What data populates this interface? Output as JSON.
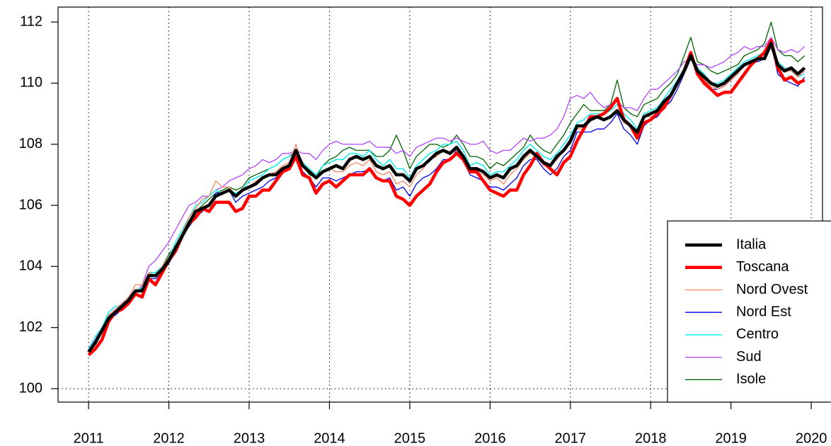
{
  "chart_data": {
    "type": "line",
    "xlim": [
      2010.62,
      2020.14
    ],
    "ylim": [
      99.56,
      112.49
    ],
    "xticks": [
      2011,
      2012,
      2013,
      2014,
      2015,
      2016,
      2017,
      2018,
      2019,
      2020
    ],
    "yticks": [
      100,
      102,
      104,
      106,
      108,
      110,
      112
    ],
    "grid": true,
    "reference_line": 100,
    "legend": "bottom-right",
    "x": [
      2011,
      2011.083,
      2011.167,
      2011.25,
      2011.333,
      2011.417,
      2011.5,
      2011.583,
      2011.667,
      2011.75,
      2011.833,
      2011.917,
      2012,
      2012.083,
      2012.167,
      2012.25,
      2012.333,
      2012.417,
      2012.5,
      2012.583,
      2012.667,
      2012.75,
      2012.833,
      2012.917,
      2013,
      2013.083,
      2013.167,
      2013.25,
      2013.333,
      2013.417,
      2013.5,
      2013.583,
      2013.667,
      2013.75,
      2013.833,
      2013.917,
      2014,
      2014.083,
      2014.167,
      2014.25,
      2014.333,
      2014.417,
      2014.5,
      2014.583,
      2014.667,
      2014.75,
      2014.833,
      2014.917,
      2015,
      2015.083,
      2015.167,
      2015.25,
      2015.333,
      2015.417,
      2015.5,
      2015.583,
      2015.667,
      2015.75,
      2015.833,
      2015.917,
      2016,
      2016.083,
      2016.167,
      2016.25,
      2016.333,
      2016.417,
      2016.5,
      2016.583,
      2016.667,
      2016.75,
      2016.833,
      2016.917,
      2017,
      2017.083,
      2017.167,
      2017.25,
      2017.333,
      2017.417,
      2017.5,
      2017.583,
      2017.667,
      2017.75,
      2017.833,
      2017.917,
      2018,
      2018.083,
      2018.167,
      2018.25,
      2018.333,
      2018.417,
      2018.5,
      2018.583,
      2018.667,
      2018.75,
      2018.833,
      2018.917,
      2019,
      2019.083,
      2019.167,
      2019.25,
      2019.333,
      2019.417,
      2019.5,
      2019.583,
      2019.667,
      2019.75,
      2019.833,
      2019.917
    ],
    "series": [
      {
        "name": "Italia",
        "color": "#000000",
        "label_color": "#000000",
        "line_width": 4.5,
        "values": [
          101.2,
          101.5,
          101.9,
          102.3,
          102.5,
          102.7,
          102.9,
          103.2,
          103.2,
          103.7,
          103.7,
          103.9,
          104.2,
          104.6,
          105.0,
          105.4,
          105.8,
          105.9,
          106.0,
          106.3,
          106.4,
          106.5,
          106.3,
          106.5,
          106.6,
          106.7,
          106.9,
          107.0,
          107.0,
          107.2,
          107.3,
          107.8,
          107.3,
          107.1,
          106.9,
          107.1,
          107.2,
          107.3,
          107.2,
          107.5,
          107.6,
          107.5,
          107.6,
          107.3,
          107.2,
          107.3,
          107.0,
          107.0,
          106.8,
          107.2,
          107.3,
          107.5,
          107.7,
          107.8,
          107.7,
          107.9,
          107.6,
          107.2,
          107.2,
          107.1,
          106.9,
          107.0,
          106.9,
          107.2,
          107.3,
          107.6,
          107.8,
          107.6,
          107.4,
          107.3,
          107.6,
          107.8,
          108.1,
          108.6,
          108.6,
          108.8,
          108.9,
          108.8,
          108.9,
          109.1,
          108.8,
          108.6,
          108.4,
          108.9,
          109.0,
          109.1,
          109.4,
          109.6,
          110.0,
          110.4,
          110.9,
          110.4,
          110.2,
          110.0,
          109.9,
          110.0,
          110.2,
          110.4,
          110.6,
          110.7,
          110.8,
          110.8,
          111.3,
          110.6,
          110.4,
          110.5,
          110.3,
          110.5
        ]
      },
      {
        "name": "Toscana",
        "color": "#ff0000",
        "label_color": "#ff0000",
        "line_width": 4.5,
        "values": [
          101.1,
          101.3,
          101.6,
          102.2,
          102.5,
          102.6,
          102.8,
          103.1,
          103.0,
          103.6,
          103.4,
          103.8,
          104.2,
          104.5,
          105.0,
          105.4,
          105.6,
          105.9,
          105.8,
          106.1,
          106.1,
          106.1,
          105.8,
          105.9,
          106.3,
          106.3,
          106.5,
          106.5,
          106.8,
          107.1,
          107.2,
          107.6,
          107.0,
          106.9,
          106.4,
          106.7,
          106.8,
          106.6,
          106.8,
          107.0,
          107.0,
          107.0,
          107.2,
          106.9,
          106.8,
          106.8,
          106.3,
          106.2,
          106.0,
          106.3,
          106.5,
          106.7,
          107.1,
          107.4,
          107.5,
          107.7,
          107.5,
          107.1,
          107.1,
          106.8,
          106.5,
          106.4,
          106.3,
          106.5,
          106.5,
          107.0,
          107.3,
          107.7,
          107.4,
          107.2,
          107.0,
          107.4,
          107.6,
          108.1,
          108.5,
          108.9,
          108.9,
          109.0,
          109.2,
          109.5,
          108.8,
          108.6,
          108.2,
          108.7,
          108.8,
          109.0,
          109.2,
          109.6,
          110.0,
          110.4,
          111.0,
          110.3,
          110.0,
          109.8,
          109.6,
          109.7,
          109.7,
          110.0,
          110.3,
          110.6,
          110.8,
          111.0,
          111.4,
          110.5,
          110.1,
          110.2,
          110.0,
          110.1
        ]
      },
      {
        "name": "Nord Ovest",
        "color": "#f4845f",
        "label_color": "#f4845f",
        "line_width": 1.3,
        "values": [
          101.2,
          101.5,
          101.9,
          102.4,
          102.6,
          102.8,
          103.0,
          103.4,
          103.4,
          103.8,
          103.7,
          104.0,
          104.3,
          104.7,
          105.1,
          105.6,
          105.9,
          106.2,
          106.3,
          106.8,
          106.6,
          106.6,
          106.3,
          106.5,
          106.6,
          106.8,
          106.9,
          107.0,
          107.1,
          107.3,
          107.4,
          108.0,
          107.3,
          107.1,
          106.9,
          107.1,
          107.2,
          107.1,
          107.1,
          107.3,
          107.4,
          107.3,
          107.5,
          107.1,
          107.0,
          107.1,
          106.7,
          106.8,
          106.6,
          107.0,
          107.2,
          107.5,
          107.6,
          107.8,
          107.7,
          107.8,
          107.6,
          107.1,
          107.1,
          107.0,
          106.8,
          106.9,
          106.7,
          107.0,
          107.2,
          107.5,
          107.7,
          107.6,
          107.3,
          107.3,
          107.5,
          107.8,
          108.2,
          108.5,
          108.5,
          108.9,
          108.9,
          108.8,
          108.9,
          109.1,
          108.7,
          108.6,
          108.3,
          108.9,
          108.9,
          109.0,
          109.3,
          109.6,
          110.0,
          110.5,
          110.9,
          110.4,
          110.1,
          109.9,
          109.8,
          109.9,
          110.1,
          110.3,
          110.6,
          110.7,
          110.8,
          110.8,
          111.2,
          110.6,
          110.4,
          110.4,
          110.2,
          110.4
        ]
      },
      {
        "name": "Nord Est",
        "color": "#0000ee",
        "label_color": "#0000ff",
        "line_width": 1.3,
        "values": [
          101.2,
          101.5,
          101.9,
          102.3,
          102.4,
          102.6,
          102.8,
          103.2,
          103.2,
          103.6,
          103.6,
          103.8,
          104.1,
          104.5,
          105.0,
          105.3,
          105.6,
          105.8,
          106.0,
          106.4,
          106.4,
          106.5,
          106.1,
          106.3,
          106.4,
          106.5,
          106.6,
          106.8,
          106.9,
          107.1,
          107.2,
          107.7,
          107.1,
          106.9,
          106.6,
          106.9,
          106.9,
          106.8,
          106.9,
          107.0,
          107.1,
          107.1,
          107.2,
          106.9,
          106.8,
          106.9,
          106.5,
          106.6,
          106.3,
          106.7,
          106.9,
          107.0,
          107.2,
          107.5,
          107.5,
          107.8,
          107.5,
          107.0,
          106.9,
          106.8,
          106.6,
          106.6,
          106.5,
          106.7,
          106.9,
          107.3,
          107.5,
          107.5,
          107.2,
          107.0,
          107.2,
          107.6,
          107.8,
          108.4,
          108.4,
          108.4,
          108.5,
          108.5,
          108.7,
          109.0,
          108.5,
          108.3,
          108.0,
          108.6,
          108.8,
          108.9,
          109.2,
          109.4,
          109.8,
          110.3,
          110.8,
          110.4,
          110.1,
          109.8,
          109.8,
          109.9,
          110.1,
          110.3,
          110.6,
          110.7,
          110.7,
          110.8,
          111.3,
          110.3,
          110.1,
          110.0,
          109.9,
          110.2
        ]
      },
      {
        "name": "Centro",
        "color": "#22eeee",
        "label_color": "#66f0d8",
        "line_width": 1.6,
        "values": [
          101.3,
          101.7,
          102.0,
          102.5,
          102.7,
          102.7,
          102.9,
          103.2,
          103.3,
          103.8,
          103.8,
          104.0,
          104.3,
          104.8,
          105.2,
          105.6,
          106.0,
          106.1,
          106.3,
          106.5,
          106.4,
          106.5,
          106.4,
          106.5,
          106.8,
          106.9,
          107.0,
          107.2,
          107.3,
          107.5,
          107.6,
          107.7,
          107.4,
          107.2,
          107.0,
          107.3,
          107.4,
          107.5,
          107.5,
          107.7,
          107.7,
          107.6,
          107.8,
          107.5,
          107.3,
          107.5,
          107.2,
          107.2,
          106.9,
          107.3,
          107.5,
          107.7,
          107.8,
          108.0,
          108.0,
          108.1,
          107.8,
          107.3,
          107.4,
          107.3,
          107.0,
          107.1,
          107.1,
          107.3,
          107.5,
          107.8,
          108.0,
          107.8,
          107.6,
          107.5,
          107.7,
          108.0,
          108.3,
          108.7,
          108.8,
          109.0,
          109.0,
          109.0,
          109.1,
          109.3,
          109.0,
          108.8,
          108.5,
          109.0,
          109.1,
          109.2,
          109.5,
          109.8,
          110.1,
          110.5,
          110.9,
          110.5,
          110.3,
          110.0,
          110.0,
          110.1,
          110.3,
          110.5,
          110.7,
          110.8,
          110.9,
          111.0,
          111.3,
          110.7,
          110.5,
          110.4,
          110.2,
          110.3
        ]
      },
      {
        "name": "Sud",
        "color": "#b445ff",
        "label_color": "#b445ff",
        "line_width": 1.3,
        "values": [
          101.3,
          101.6,
          102.0,
          102.4,
          102.6,
          102.8,
          102.9,
          103.1,
          103.4,
          104.0,
          104.2,
          104.5,
          104.8,
          105.2,
          105.6,
          106.0,
          106.1,
          106.3,
          106.3,
          106.5,
          106.6,
          106.8,
          106.9,
          107.0,
          107.2,
          107.3,
          107.5,
          107.4,
          107.5,
          107.7,
          107.7,
          107.8,
          107.7,
          107.7,
          107.5,
          107.8,
          108.0,
          108.1,
          108.0,
          108.0,
          108.0,
          108.0,
          108.1,
          107.9,
          107.9,
          107.9,
          107.7,
          107.8,
          107.6,
          107.9,
          108.0,
          108.1,
          108.2,
          108.2,
          108.1,
          108.2,
          108.1,
          108.0,
          108.0,
          108.1,
          107.8,
          107.7,
          107.8,
          107.8,
          108.0,
          108.2,
          108.1,
          108.2,
          108.2,
          108.3,
          108.5,
          108.9,
          109.5,
          109.6,
          109.5,
          109.7,
          109.4,
          109.2,
          109.3,
          109.4,
          109.2,
          109.2,
          109.1,
          109.5,
          109.8,
          109.8,
          110.0,
          110.2,
          110.4,
          110.7,
          110.8,
          110.6,
          110.6,
          110.5,
          110.6,
          110.7,
          110.9,
          111.0,
          111.2,
          111.1,
          111.2,
          111.2,
          111.5,
          111.1,
          111.0,
          111.1,
          111.0,
          111.2
        ]
      },
      {
        "name": "Isole",
        "color": "#006400",
        "label_color": "#006400",
        "line_width": 1.3,
        "values": [
          101.2,
          101.6,
          102.0,
          102.4,
          102.5,
          102.6,
          102.8,
          103.2,
          103.3,
          103.8,
          103.8,
          104.0,
          104.4,
          104.7,
          105.1,
          105.5,
          105.8,
          106.0,
          106.2,
          106.4,
          106.5,
          106.6,
          106.5,
          106.6,
          106.9,
          107.0,
          107.1,
          107.2,
          107.3,
          107.5,
          107.6,
          107.8,
          107.3,
          107.0,
          106.9,
          107.3,
          107.5,
          107.6,
          107.8,
          107.9,
          107.8,
          107.8,
          107.8,
          107.6,
          107.6,
          107.8,
          108.3,
          107.8,
          107.2,
          107.6,
          107.8,
          108.0,
          108.0,
          107.9,
          108.0,
          108.3,
          108.0,
          107.6,
          107.6,
          107.5,
          107.2,
          107.4,
          107.3,
          107.5,
          107.7,
          107.9,
          108.3,
          108.0,
          107.8,
          107.7,
          108.0,
          108.3,
          108.7,
          109.0,
          109.3,
          109.1,
          109.1,
          109.1,
          109.3,
          110.1,
          109.2,
          109.0,
          108.9,
          109.3,
          109.4,
          109.5,
          109.8,
          110.0,
          110.3,
          110.9,
          111.5,
          110.7,
          110.6,
          110.4,
          110.3,
          110.4,
          110.5,
          110.6,
          110.9,
          111.0,
          111.1,
          111.3,
          112.0,
          111.1,
          110.9,
          110.9,
          110.7,
          110.9
        ]
      }
    ]
  }
}
